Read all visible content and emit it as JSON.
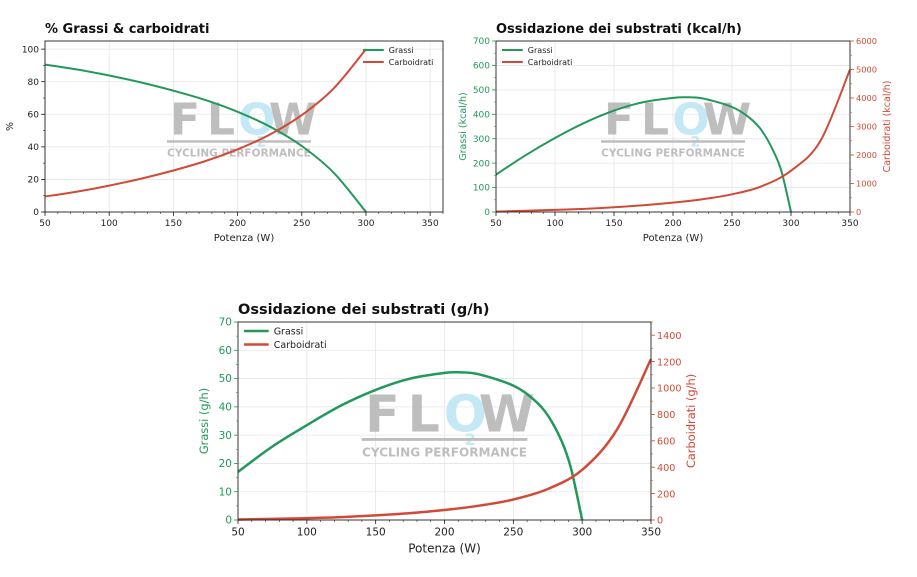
{
  "colors": {
    "fats": "#22995a",
    "carbs": "#d24a37",
    "watermark_gray": "#b8b8b8",
    "watermark_blue": "#bfe6f5"
  },
  "watermark": {
    "letters": "FLOW",
    "sub": "2",
    "tagline": "CYCLING PERFORMANCE"
  },
  "chart_data": [
    {
      "type": "line",
      "title": "% Grassi & carboidrati",
      "xlabel": "Potenza (W)",
      "ylabel": "%",
      "xlim": [
        50,
        360
      ],
      "ylim": [
        0,
        105
      ],
      "xticks": [
        50,
        100,
        150,
        200,
        250,
        300,
        350
      ],
      "yticks": [
        0,
        20,
        40,
        60,
        80,
        100
      ],
      "legend": "top-right",
      "grid": true,
      "series": [
        {
          "name": "Grassi",
          "axis": "left",
          "x": [
            50,
            75,
            100,
            125,
            150,
            175,
            200,
            225,
            250,
            275,
            300
          ],
          "y": [
            90.5,
            87.5,
            83.8,
            79.5,
            74.5,
            68.7,
            61.5,
            52.5,
            40.5,
            24,
            0
          ]
        },
        {
          "name": "Carboidrati",
          "axis": "left",
          "x": [
            50,
            75,
            100,
            125,
            150,
            175,
            200,
            225,
            250,
            275,
            300
          ],
          "y": [
            9.5,
            12.5,
            16.2,
            20.5,
            25.5,
            31.3,
            38.5,
            47.5,
            59.5,
            76,
            100
          ]
        }
      ]
    },
    {
      "type": "line",
      "title": "Ossidazione dei substrati (kcal/h)",
      "xlabel": "Potenza (W)",
      "ylabel": "Grassi (kcal/h)",
      "y2label": "Carboidrati (kcal/h)",
      "xlim": [
        50,
        350
      ],
      "ylim": [
        0,
        700
      ],
      "y2lim": [
        0,
        6000
      ],
      "xticks": [
        50,
        100,
        150,
        200,
        250,
        300,
        350
      ],
      "yticks": [
        0,
        100,
        200,
        300,
        400,
        500,
        600,
        700
      ],
      "y2ticks": [
        0,
        1000,
        2000,
        3000,
        4000,
        5000,
        6000
      ],
      "legend": "top-left",
      "grid": true,
      "series": [
        {
          "name": "Grassi",
          "axis": "left",
          "x": [
            50,
            75,
            100,
            125,
            150,
            175,
            200,
            210,
            225,
            250,
            265,
            275,
            285,
            292,
            300
          ],
          "y": [
            153,
            232,
            303,
            365,
            415,
            450,
            467,
            470,
            465,
            430,
            385,
            335,
            250,
            165,
            0
          ]
        },
        {
          "name": "Carboidrati",
          "axis": "right",
          "x": [
            50,
            75,
            100,
            125,
            150,
            175,
            200,
            225,
            250,
            275,
            300,
            325,
            350
          ],
          "y": [
            15,
            45,
            75,
            110,
            165,
            240,
            330,
            450,
            620,
            900,
            1450,
            2500,
            5000
          ]
        }
      ]
    },
    {
      "type": "line",
      "title": "Ossidazione dei substrati (g/h)",
      "xlabel": "Potenza (W)",
      "ylabel": "Grassi (g/h)",
      "y2label": "Carboidrati (g/h)",
      "xlim": [
        50,
        350
      ],
      "ylim": [
        0,
        70
      ],
      "y2lim": [
        0,
        1500
      ],
      "xticks": [
        50,
        100,
        150,
        200,
        250,
        300,
        350
      ],
      "yticks": [
        0,
        10,
        20,
        30,
        40,
        50,
        60,
        70
      ],
      "y2ticks": [
        0,
        200,
        400,
        600,
        800,
        1000,
        1200,
        1400
      ],
      "legend": "top-left",
      "grid": true,
      "series": [
        {
          "name": "Grassi",
          "axis": "left",
          "x": [
            50,
            75,
            100,
            125,
            150,
            175,
            200,
            210,
            225,
            250,
            265,
            275,
            285,
            292,
            300
          ],
          "y": [
            17,
            26,
            33.5,
            40.5,
            46,
            50,
            52,
            52.2,
            51.5,
            47.5,
            42.5,
            37,
            28,
            18,
            0
          ]
        },
        {
          "name": "Carboidrati",
          "axis": "right",
          "x": [
            50,
            75,
            100,
            125,
            150,
            175,
            200,
            225,
            250,
            275,
            300,
            325,
            350
          ],
          "y": [
            4,
            8,
            14,
            22,
            35,
            52,
            76,
            108,
            155,
            235,
            380,
            680,
            1220
          ]
        }
      ]
    }
  ]
}
